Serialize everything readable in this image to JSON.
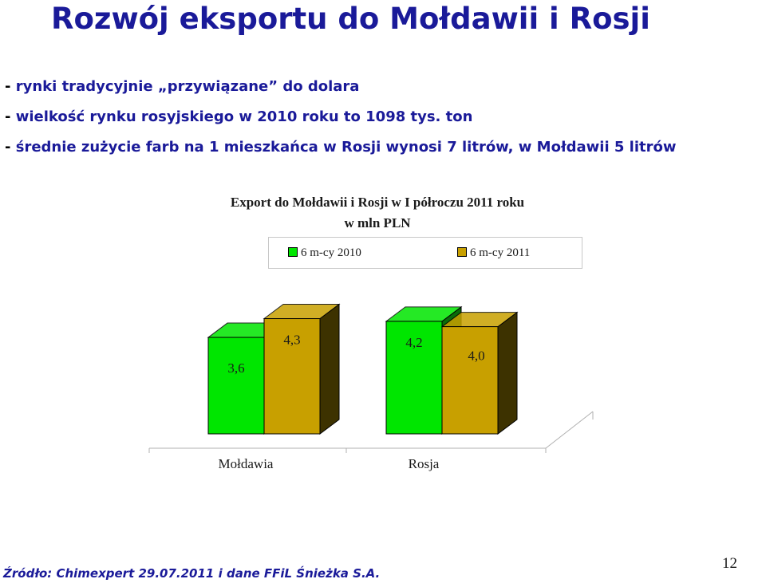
{
  "slide": {
    "title": "Rozwój eksportu do Mołdawii i Rosji",
    "bullets": [
      {
        "dash": "- ",
        "text": "rynki tradycyjnie „przywiązane” do dolara"
      },
      {
        "dash": "- ",
        "text": "wielkość rynku rosyjskiego w 2010 roku to 1098 tys. ton"
      },
      {
        "dash": "- ",
        "text": "średnie zużycie farb na 1 mieszkańca w Rosji wynosi 7 litrów, w Mołdawii 5 litrów"
      }
    ],
    "footer": "Źródło: Chimexpert 29.07.2011 i dane FFiL Śnieżka S.A.",
    "page_number": "12"
  },
  "chart_data": {
    "type": "bar",
    "title_line1": "Export do Mołdawii i Rosji w I półroczu 2011 roku",
    "title_line2": "w mln PLN",
    "categories": [
      "Mołdawia",
      "Rosja"
    ],
    "series": [
      {
        "name": "6 m-cy 2010",
        "values": [
          3.6,
          4.2
        ],
        "labels": [
          "3,6",
          "4,2"
        ],
        "color": "#00e600",
        "shadow": "#0a6b0a"
      },
      {
        "name": "6 m-cy 2011",
        "values": [
          4.3,
          4.0
        ],
        "labels": [
          "4,3",
          "4,0"
        ],
        "color": "#c8a000",
        "shadow": "#3d3200"
      }
    ],
    "three_d": true,
    "legend_position": "top",
    "grid": false
  }
}
